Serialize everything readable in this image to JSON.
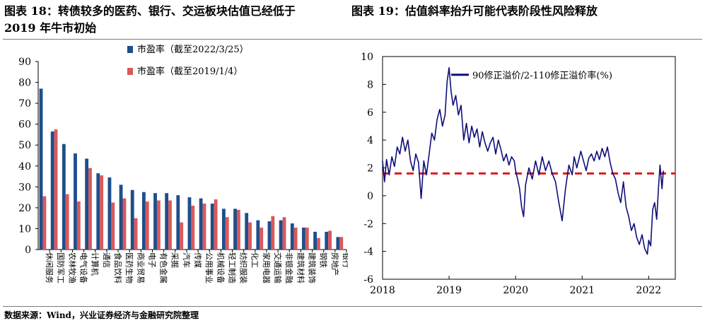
{
  "titles": {
    "left_line1": "图表 18：转债较多的医药、银行、交运板块估值已经低于",
    "left_line2": "2019 年牛市初始",
    "right": "图表 19：估值斜率抬升可能代表阶段性风险释放"
  },
  "source": "数据来源：Wind，兴业证券经济与金融研究院整理",
  "colors": {
    "series_a": "#1F4E8C",
    "series_b": "#D9595C",
    "line": "#0E0E7A",
    "dashed": "#E0191F"
  },
  "chart_data": [
    {
      "type": "bar",
      "title": "",
      "xlabel": "",
      "ylabel": "",
      "ylim": [
        0,
        90
      ],
      "yticks": [
        0,
        10,
        20,
        30,
        40,
        50,
        60,
        70,
        80,
        90
      ],
      "legend_position": "top",
      "categories": [
        "休闲服务",
        "国防军工",
        "农林牧渔",
        "电气设备",
        "计算机",
        "通信",
        "食品饮料",
        "医药生物",
        "商业贸易",
        "电子",
        "有色金属",
        "采掘",
        "汽车",
        "传媒",
        "公用事业",
        "机械设备",
        "轻工制造",
        "纺织服装",
        "化工",
        "家用电器",
        "交通运输",
        "非银金融",
        "建筑材料",
        "建筑装饰",
        "钢铁",
        "房地产",
        "银行"
      ],
      "series": [
        {
          "name": "市盈率（截至2022/3/25）",
          "values": [
            77,
            56.5,
            50.5,
            46,
            43.5,
            36.5,
            34.5,
            31,
            28.5,
            27.5,
            27,
            27,
            26,
            25,
            24.5,
            22,
            19.5,
            19.5,
            17.5,
            14,
            13.5,
            14,
            12.5,
            10.5,
            8.5,
            8.5,
            6
          ]
        },
        {
          "name": "市盈率（截至2019/1/4）",
          "values": [
            25.5,
            57.5,
            26.5,
            23,
            39,
            35.5,
            22.5,
            24.5,
            15,
            23,
            23.5,
            23.5,
            13,
            21,
            22,
            24,
            15.5,
            19,
            13,
            10.5,
            16,
            15.5,
            10.5,
            10.5,
            5.5,
            9,
            6
          ]
        }
      ]
    },
    {
      "type": "line",
      "title": "",
      "xlabel": "",
      "ylabel": "",
      "xlim": [
        2018.0,
        2022.4
      ],
      "ylim": [
        -6,
        10
      ],
      "yticks": [
        -6,
        -4,
        -2,
        0,
        2,
        4,
        6,
        8,
        10
      ],
      "xticks": [
        "2018",
        "2019",
        "2020",
        "2021",
        "2022"
      ],
      "reference_line": {
        "y": 1.6,
        "style": "dashed"
      },
      "annotation": "90修正溢价/2-110修正溢价率(%)",
      "series": [
        {
          "name": "90修正溢价/2-110修正溢价率(%)",
          "x": [
            2018.0,
            2018.03,
            2018.06,
            2018.1,
            2018.14,
            2018.18,
            2018.22,
            2018.26,
            2018.3,
            2018.34,
            2018.38,
            2018.42,
            2018.46,
            2018.5,
            2018.54,
            2018.58,
            2018.62,
            2018.66,
            2018.7,
            2018.74,
            2018.78,
            2018.82,
            2018.86,
            2018.9,
            2018.94,
            2018.97,
            2019.0,
            2019.03,
            2019.06,
            2019.1,
            2019.14,
            2019.18,
            2019.22,
            2019.26,
            2019.3,
            2019.34,
            2019.38,
            2019.42,
            2019.46,
            2019.5,
            2019.54,
            2019.58,
            2019.62,
            2019.66,
            2019.7,
            2019.74,
            2019.78,
            2019.82,
            2019.86,
            2019.9,
            2019.94,
            2019.98,
            2020.0,
            2020.03,
            2020.06,
            2020.09,
            2020.12,
            2020.15,
            2020.2,
            2020.25,
            2020.3,
            2020.35,
            2020.4,
            2020.45,
            2020.5,
            2020.55,
            2020.6,
            2020.65,
            2020.7,
            2020.75,
            2020.8,
            2020.85,
            2020.88,
            2020.92,
            2020.95,
            2020.98,
            2021.02,
            2021.06,
            2021.1,
            2021.14,
            2021.18,
            2021.22,
            2021.26,
            2021.3,
            2021.34,
            2021.38,
            2021.42,
            2021.46,
            2021.5,
            2021.54,
            2021.58,
            2021.62,
            2021.66,
            2021.7,
            2021.74,
            2021.78,
            2021.82,
            2021.86,
            2021.9,
            2021.94,
            2021.98,
            2022.0,
            2022.03,
            2022.06,
            2022.09,
            2022.12,
            2022.15,
            2022.17,
            2022.2,
            2022.22
          ],
          "y": [
            2.5,
            1.0,
            2.6,
            1.5,
            2.8,
            2.1,
            3.5,
            3.0,
            4.2,
            3.2,
            4.0,
            2.5,
            1.8,
            3.0,
            2.4,
            -0.2,
            2.5,
            1.5,
            3.0,
            4.5,
            4.0,
            5.5,
            6.2,
            5.0,
            5.8,
            8.2,
            9.2,
            7.5,
            6.5,
            7.2,
            5.8,
            6.5,
            4.0,
            5.2,
            3.8,
            5.0,
            4.2,
            4.8,
            3.5,
            4.6,
            3.8,
            3.2,
            3.8,
            4.2,
            3.0,
            4.0,
            3.3,
            2.5,
            3.0,
            2.2,
            2.8,
            2.5,
            1.8,
            1.2,
            0.5,
            -0.8,
            -1.5,
            0.8,
            2.0,
            1.2,
            2.5,
            1.5,
            2.8,
            1.8,
            2.5,
            1.6,
            1.0,
            -0.5,
            -1.8,
            0.5,
            2.2,
            1.5,
            2.8,
            2.0,
            2.6,
            3.2,
            2.5,
            1.8,
            2.7,
            3.0,
            2.5,
            3.2,
            2.6,
            3.4,
            2.8,
            3.5,
            2.4,
            1.6,
            1.2,
            0.2,
            -0.5,
            1.0,
            -0.8,
            -1.5,
            -2.5,
            -2.0,
            -3.0,
            -3.5,
            -2.8,
            -3.8,
            -4.2,
            -3.2,
            -3.6,
            -1.0,
            -0.5,
            -1.7,
            0.8,
            2.2,
            0.5,
            1.8
          ]
        }
      ]
    }
  ]
}
